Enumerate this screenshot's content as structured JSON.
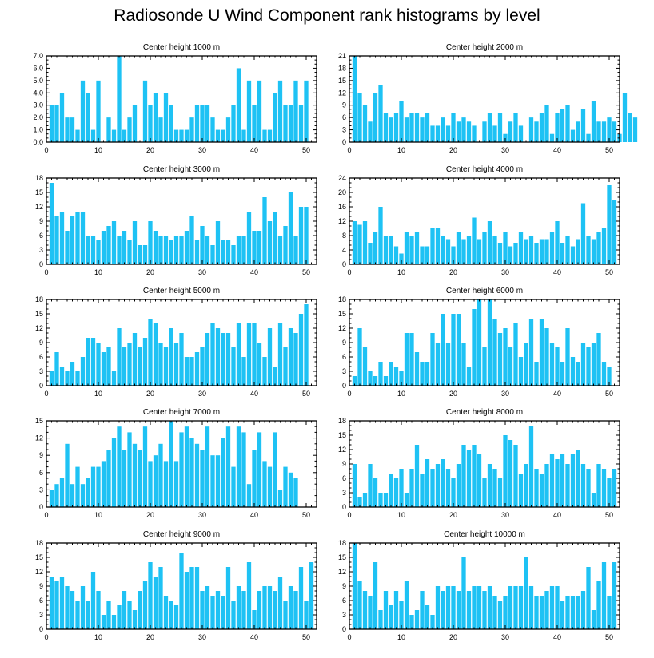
{
  "title": "Radiosonde U Wind Component rank histograms by level",
  "colors": {
    "bar": "#1ec2f4",
    "axis": "#000000",
    "background": "#ffffff"
  },
  "chart_data": [
    {
      "type": "bar",
      "title": "Center height 1000 m",
      "x_start": 1,
      "xlim": [
        0,
        52
      ],
      "ylim": [
        0,
        7
      ],
      "xticks": [
        0,
        10,
        20,
        30,
        40,
        50
      ],
      "yticks": [
        "0.0",
        "1.0",
        "2.0",
        "3.0",
        "4.0",
        "5.0",
        "6.0",
        "7.0"
      ],
      "values": [
        3,
        3,
        4,
        2,
        2,
        1,
        5,
        4,
        1,
        5,
        0,
        2,
        1,
        7,
        1,
        2,
        3,
        0,
        5,
        3,
        4,
        2,
        4,
        3,
        1,
        1,
        1,
        2,
        3,
        3,
        3,
        2,
        1,
        1,
        2,
        3,
        6,
        1,
        5,
        3,
        5,
        1,
        1,
        4,
        5,
        3,
        3,
        5,
        3,
        5
      ]
    },
    {
      "type": "bar",
      "title": "Center height 2000 m",
      "x_start": 1,
      "xlim": [
        0,
        52
      ],
      "ylim": [
        0,
        21
      ],
      "xticks": [
        0,
        10,
        20,
        30,
        40,
        50
      ],
      "yticks": [
        "0",
        "3",
        "6",
        "9",
        "12",
        "15",
        "18",
        "21"
      ],
      "values": [
        21,
        12,
        9,
        5,
        12,
        14,
        7,
        6,
        7,
        10,
        6,
        7,
        7,
        6,
        7,
        4,
        4,
        6,
        4,
        7,
        5,
        6,
        5,
        4,
        0,
        5,
        7,
        4,
        7,
        2,
        5,
        7,
        4,
        0,
        6,
        5,
        7,
        9,
        2,
        7,
        8,
        9,
        3,
        5,
        8,
        2,
        10,
        5,
        5,
        6,
        5,
        2,
        12,
        7,
        6
      ]
    },
    {
      "type": "bar",
      "title": "Center height 3000 m",
      "x_start": 1,
      "xlim": [
        0,
        52
      ],
      "ylim": [
        0,
        18
      ],
      "xticks": [
        0,
        10,
        20,
        30,
        40,
        50
      ],
      "yticks": [
        "0",
        "3",
        "6",
        "9",
        "12",
        "15",
        "18"
      ],
      "values": [
        17,
        10,
        11,
        7,
        10,
        11,
        11,
        6,
        6,
        5,
        7,
        8,
        9,
        6,
        7,
        5,
        9,
        4,
        4,
        9,
        7,
        6,
        6,
        5,
        6,
        6,
        7,
        10,
        5,
        8,
        6,
        4,
        9,
        5,
        5,
        4,
        6,
        6,
        11,
        7,
        7,
        14,
        9,
        11,
        6,
        8,
        15,
        6,
        12,
        12
      ]
    },
    {
      "type": "bar",
      "title": "Center height 4000 m",
      "x_start": 1,
      "xlim": [
        0,
        52
      ],
      "ylim": [
        0,
        24
      ],
      "xticks": [
        0,
        10,
        20,
        30,
        40,
        50
      ],
      "yticks": [
        "0",
        "4",
        "8",
        "12",
        "16",
        "20",
        "24"
      ],
      "values": [
        12,
        11,
        12,
        6,
        9,
        16,
        8,
        8,
        5,
        3,
        9,
        8,
        9,
        5,
        5,
        10,
        10,
        8,
        7,
        5,
        9,
        7,
        8,
        13,
        7,
        9,
        12,
        8,
        6,
        9,
        5,
        6,
        9,
        7,
        8,
        6,
        7,
        7,
        9,
        12,
        6,
        8,
        5,
        7,
        17,
        8,
        7,
        9,
        10,
        22,
        18
      ]
    },
    {
      "type": "bar",
      "title": "Center height 5000 m",
      "x_start": 1,
      "xlim": [
        0,
        52
      ],
      "ylim": [
        0,
        18
      ],
      "xticks": [
        0,
        10,
        20,
        30,
        40,
        50
      ],
      "yticks": [
        "0",
        "3",
        "6",
        "9",
        "12",
        "15",
        "18"
      ],
      "values": [
        3,
        7,
        4,
        3,
        5,
        3,
        6,
        10,
        10,
        9,
        7,
        8,
        3,
        12,
        8,
        9,
        11,
        8,
        10,
        14,
        13,
        9,
        8,
        12,
        9,
        11,
        6,
        6,
        7,
        8,
        11,
        13,
        12,
        11,
        11,
        8,
        13,
        6,
        13,
        13,
        9,
        6,
        12,
        4,
        13,
        8,
        12,
        11,
        15,
        17
      ]
    },
    {
      "type": "bar",
      "title": "Center height 6000 m",
      "x_start": 1,
      "xlim": [
        0,
        52
      ],
      "ylim": [
        0,
        18
      ],
      "xticks": [
        0,
        10,
        20,
        30,
        40,
        50
      ],
      "yticks": [
        "0",
        "3",
        "6",
        "9",
        "12",
        "15",
        "18"
      ],
      "values": [
        2,
        12,
        8,
        3,
        2,
        5,
        2,
        5,
        4,
        3,
        11,
        11,
        7,
        5,
        5,
        11,
        9,
        15,
        9,
        15,
        15,
        9,
        4,
        16,
        18,
        8,
        18,
        14,
        11,
        12,
        8,
        13,
        6,
        9,
        14,
        5,
        14,
        12,
        9,
        8,
        5,
        12,
        6,
        5,
        9,
        8,
        9,
        11,
        5,
        4
      ]
    },
    {
      "type": "bar",
      "title": "Center height 7000 m",
      "x_start": 1,
      "xlim": [
        0,
        52
      ],
      "ylim": [
        0,
        15
      ],
      "xticks": [
        0,
        10,
        20,
        30,
        40,
        50
      ],
      "yticks": [
        "0",
        "3",
        "6",
        "9",
        "12",
        "15"
      ],
      "values": [
        3,
        4,
        5,
        11,
        4,
        7,
        4,
        5,
        7,
        7,
        8,
        10,
        12,
        14,
        10,
        13,
        11,
        10,
        14,
        8,
        9,
        11,
        8,
        15,
        8,
        13,
        14,
        12,
        11,
        10,
        14,
        9,
        9,
        12,
        14,
        7,
        14,
        13,
        4,
        10,
        13,
        8,
        7,
        13,
        3,
        7,
        6,
        5
      ]
    },
    {
      "type": "bar",
      "title": "Center height 8000 m",
      "x_start": 1,
      "xlim": [
        0,
        52
      ],
      "ylim": [
        0,
        18
      ],
      "xticks": [
        0,
        10,
        20,
        30,
        40,
        50
      ],
      "yticks": [
        "0",
        "3",
        "6",
        "9",
        "12",
        "15",
        "18"
      ],
      "values": [
        9,
        2,
        3,
        9,
        6,
        3,
        3,
        7,
        6,
        8,
        3,
        8,
        13,
        7,
        10,
        8,
        9,
        10,
        8,
        6,
        9,
        13,
        12,
        13,
        11,
        6,
        9,
        8,
        6,
        15,
        14,
        13,
        7,
        9,
        17,
        8,
        7,
        9,
        11,
        10,
        11,
        9,
        11,
        12,
        9,
        8,
        3,
        9,
        8,
        6,
        8
      ]
    },
    {
      "type": "bar",
      "title": "Center height 9000 m",
      "x_start": 1,
      "xlim": [
        0,
        52
      ],
      "ylim": [
        0,
        18
      ],
      "xticks": [
        0,
        10,
        20,
        30,
        40,
        50
      ],
      "yticks": [
        "0",
        "3",
        "6",
        "9",
        "12",
        "15",
        "18"
      ],
      "values": [
        11,
        10,
        11,
        9,
        8,
        6,
        9,
        6,
        12,
        8,
        3,
        6,
        3,
        5,
        8,
        6,
        4,
        8,
        10,
        14,
        11,
        13,
        7,
        6,
        5,
        16,
        12,
        13,
        13,
        8,
        9,
        7,
        8,
        7,
        13,
        6,
        9,
        8,
        14,
        4,
        8,
        9,
        9,
        8,
        11,
        6,
        9,
        8,
        13,
        6,
        14
      ]
    },
    {
      "type": "bar",
      "title": "Center height 10000 m",
      "x_start": 1,
      "xlim": [
        0,
        52
      ],
      "ylim": [
        0,
        18
      ],
      "xticks": [
        0,
        10,
        20,
        30,
        40,
        50
      ],
      "yticks": [
        "0",
        "3",
        "6",
        "9",
        "12",
        "15",
        "18"
      ],
      "values": [
        18,
        10,
        8,
        7,
        14,
        4,
        8,
        5,
        8,
        6,
        10,
        3,
        4,
        8,
        5,
        3,
        9,
        8,
        9,
        9,
        8,
        15,
        8,
        9,
        9,
        8,
        9,
        7,
        6,
        7,
        9,
        9,
        9,
        15,
        9,
        7,
        7,
        8,
        9,
        9,
        6,
        7,
        7,
        7,
        8,
        13,
        4,
        10,
        14,
        7,
        14
      ]
    }
  ]
}
